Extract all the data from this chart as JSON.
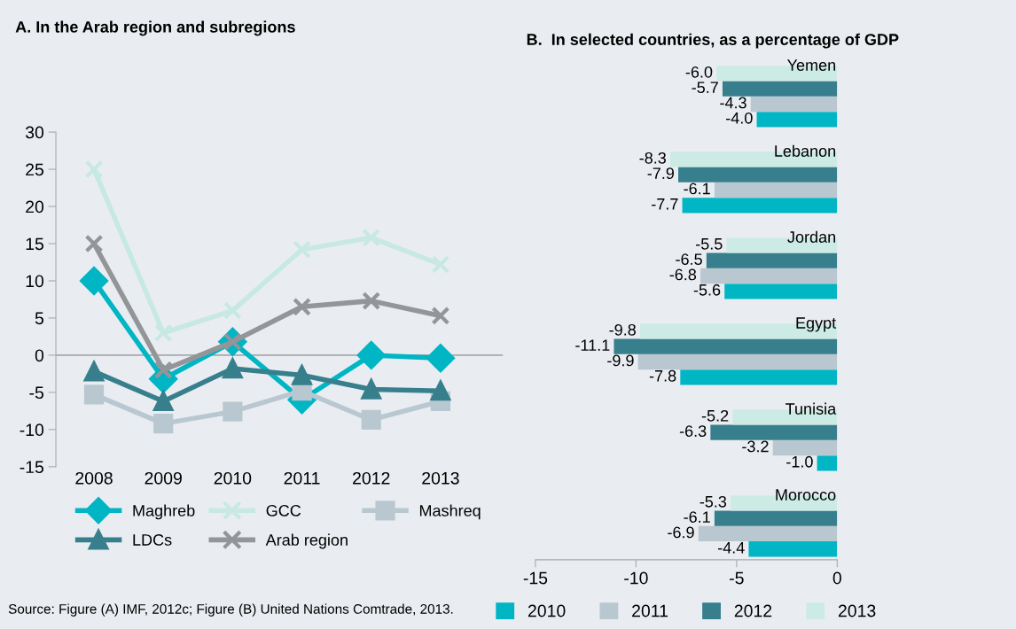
{
  "chart_data": [
    {
      "type": "line",
      "title": "A. In the Arab region and subregions",
      "categories": [
        "2008",
        "2009",
        "2010",
        "2011",
        "2012",
        "2013"
      ],
      "ylim": [
        -15,
        30
      ],
      "yticks": [
        -15,
        -10,
        -5,
        0,
        5,
        10,
        15,
        20,
        25,
        30
      ],
      "grid": false,
      "legend": "bottom",
      "ref_lines": [
        {
          "axis": "y",
          "value": 0,
          "color": "#a7a9ac"
        }
      ],
      "series": [
        {
          "name": "Maghreb",
          "color": "#00b5c4",
          "marker": "diamond",
          "values": [
            10,
            -3.2,
            1.8,
            -6,
            0,
            -0.4
          ]
        },
        {
          "name": "GCC",
          "color": "#c8e9e2",
          "marker": "cross",
          "values": [
            25,
            3,
            6,
            14.2,
            15.8,
            12.2
          ]
        },
        {
          "name": "Mashreq",
          "color": "#b9c8d0",
          "marker": "square",
          "values": [
            -5.3,
            -9.2,
            -7.6,
            -4.8,
            -8.7,
            -6.2
          ]
        },
        {
          "name": "LDCs",
          "color": "#377f8c",
          "marker": "triangle",
          "values": [
            -2.2,
            -6.2,
            -1.8,
            -2.7,
            -4.6,
            -4.8
          ]
        },
        {
          "name": "Arab region",
          "color": "#939598",
          "marker": "cross",
          "values": [
            15,
            -2,
            1.8,
            6.5,
            7.3,
            5.3
          ]
        }
      ],
      "annotations": [
        "Source: Figure (A) IMF, 2012c; Figure (B) United Nations Comtrade, 2013."
      ]
    },
    {
      "type": "bar",
      "orientation": "horizontal",
      "title": "B.  In selected countries, as a percentage of GDP",
      "categories": [
        "Yemen",
        "Lebanon",
        "Jordan",
        "Egypt",
        "Tunisia",
        "Morocco"
      ],
      "xlim": [
        -15,
        0
      ],
      "xticks": [
        -15,
        -10,
        -5,
        0
      ],
      "grid": false,
      "legend": "bottom",
      "series": [
        {
          "name": "2010",
          "color": "#00b5c4",
          "values": [
            -4.0,
            -7.7,
            -5.6,
            -7.8,
            -1.0,
            -4.4
          ],
          "value_labels": [
            "-4.0",
            "-7.7",
            "-5.6",
            "-7.8",
            "-1.0",
            "-4.4"
          ]
        },
        {
          "name": "2011",
          "color": "#b9c8d0",
          "values": [
            -4.3,
            -6.1,
            -6.8,
            -9.9,
            -3.2,
            -6.9
          ],
          "value_labels": [
            "-4.3",
            "-6.1",
            "-6.8",
            "-9.9",
            "-3.2",
            "-6.9"
          ]
        },
        {
          "name": "2012",
          "color": "#377f8c",
          "values": [
            -5.7,
            -7.9,
            -6.5,
            -11.1,
            -6.3,
            -6.1
          ],
          "value_labels": [
            "-5.7",
            "-7.9",
            "-6.5",
            "-11.1",
            "-6.3",
            "-6.1"
          ]
        },
        {
          "name": "2013",
          "color": "#cdebe5",
          "values": [
            -6.0,
            -8.3,
            -5.5,
            -9.8,
            -5.2,
            -5.3
          ],
          "value_labels": [
            "-6.0",
            "-8.3",
            "-5.5",
            "-9.8",
            "-5.2",
            "-5.3"
          ]
        }
      ]
    }
  ]
}
